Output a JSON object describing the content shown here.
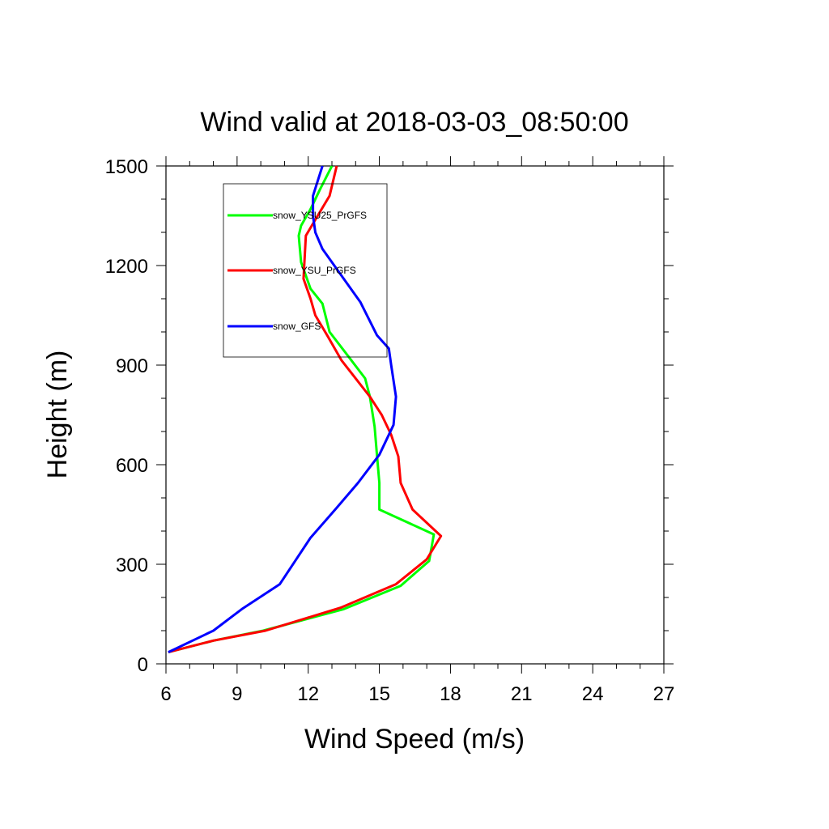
{
  "chart_data": {
    "type": "line",
    "title": "Wind valid at 2018-03-03_08:50:00",
    "xlabel": "Wind Speed (m/s)",
    "ylabel": "Height (m)",
    "xlim": [
      6,
      27
    ],
    "ylim": [
      0,
      1500
    ],
    "xticks": [
      "6",
      "9",
      "12",
      "15",
      "18",
      "21",
      "24",
      "27"
    ],
    "yticks": [
      "0",
      "300",
      "600",
      "900",
      "1200",
      "1500"
    ],
    "grid": false,
    "legend_position": "top-left",
    "series": [
      {
        "name": "snow_YSU25_PrGFS",
        "color": "#00ff00",
        "x": [
          6.1,
          8.0,
          10.1,
          13.5,
          15.9,
          17.1,
          17.3,
          15.0,
          15.0,
          14.9,
          14.8,
          14.6,
          14.4,
          13.6,
          12.9,
          12.6,
          12.1,
          11.7,
          11.6,
          11.7,
          12.1,
          12.5,
          13.0
        ],
        "y": [
          35,
          70,
          100,
          165,
          235,
          310,
          390,
          465,
          545,
          630,
          715,
          805,
          860,
          935,
          1000,
          1085,
          1130,
          1210,
          1290,
          1320,
          1370,
          1430,
          1500
        ]
      },
      {
        "name": "snow_YSU_PrGFS",
        "color": "#ff0000",
        "x": [
          6.1,
          8.0,
          10.2,
          13.4,
          15.7,
          17.0,
          17.6,
          16.4,
          15.9,
          15.8,
          15.5,
          15.1,
          14.6,
          14.0,
          13.4,
          12.8,
          12.3,
          12.1,
          11.8,
          11.9,
          12.4,
          12.9,
          13.2
        ],
        "y": [
          35,
          70,
          100,
          170,
          240,
          315,
          385,
          465,
          545,
          625,
          690,
          750,
          805,
          860,
          915,
          990,
          1050,
          1100,
          1160,
          1290,
          1350,
          1410,
          1500
        ]
      },
      {
        "name": "snow_GFS",
        "color": "#0000ff",
        "x": [
          6.1,
          8.0,
          9.2,
          10.8,
          12.1,
          13.2,
          14.1,
          15.0,
          15.6,
          15.7,
          15.5,
          15.4,
          14.9,
          14.2,
          13.3,
          12.6,
          12.3,
          12.2,
          12.2,
          12.6
        ],
        "y": [
          35,
          100,
          165,
          240,
          380,
          470,
          545,
          630,
          720,
          805,
          900,
          950,
          990,
          1090,
          1180,
          1250,
          1300,
          1350,
          1410,
          1500
        ]
      }
    ]
  }
}
